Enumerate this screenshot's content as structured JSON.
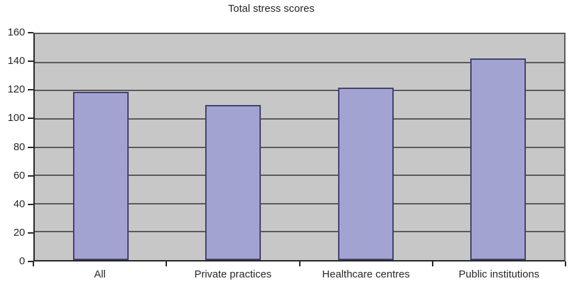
{
  "chart_data": {
    "type": "bar",
    "title": "Total stress scores",
    "categories": [
      "All",
      "Private practices",
      "Healthcare centres",
      "Public institutions"
    ],
    "values": [
      119,
      110,
      122,
      143
    ],
    "xlabel": "",
    "ylabel": "",
    "ylim": [
      0,
      160
    ],
    "yticks": [
      0,
      20,
      40,
      60,
      80,
      100,
      120,
      140,
      160
    ],
    "grid": "horizontal",
    "legend": "none",
    "colors": {
      "bar_fill": "#A3A3D2",
      "bar_border": "#42426B",
      "plot_background": "#C7C7C7",
      "gridline": "#595959",
      "axis": "#262626",
      "text": "#262626",
      "page_background": "#FFFFFF"
    }
  }
}
